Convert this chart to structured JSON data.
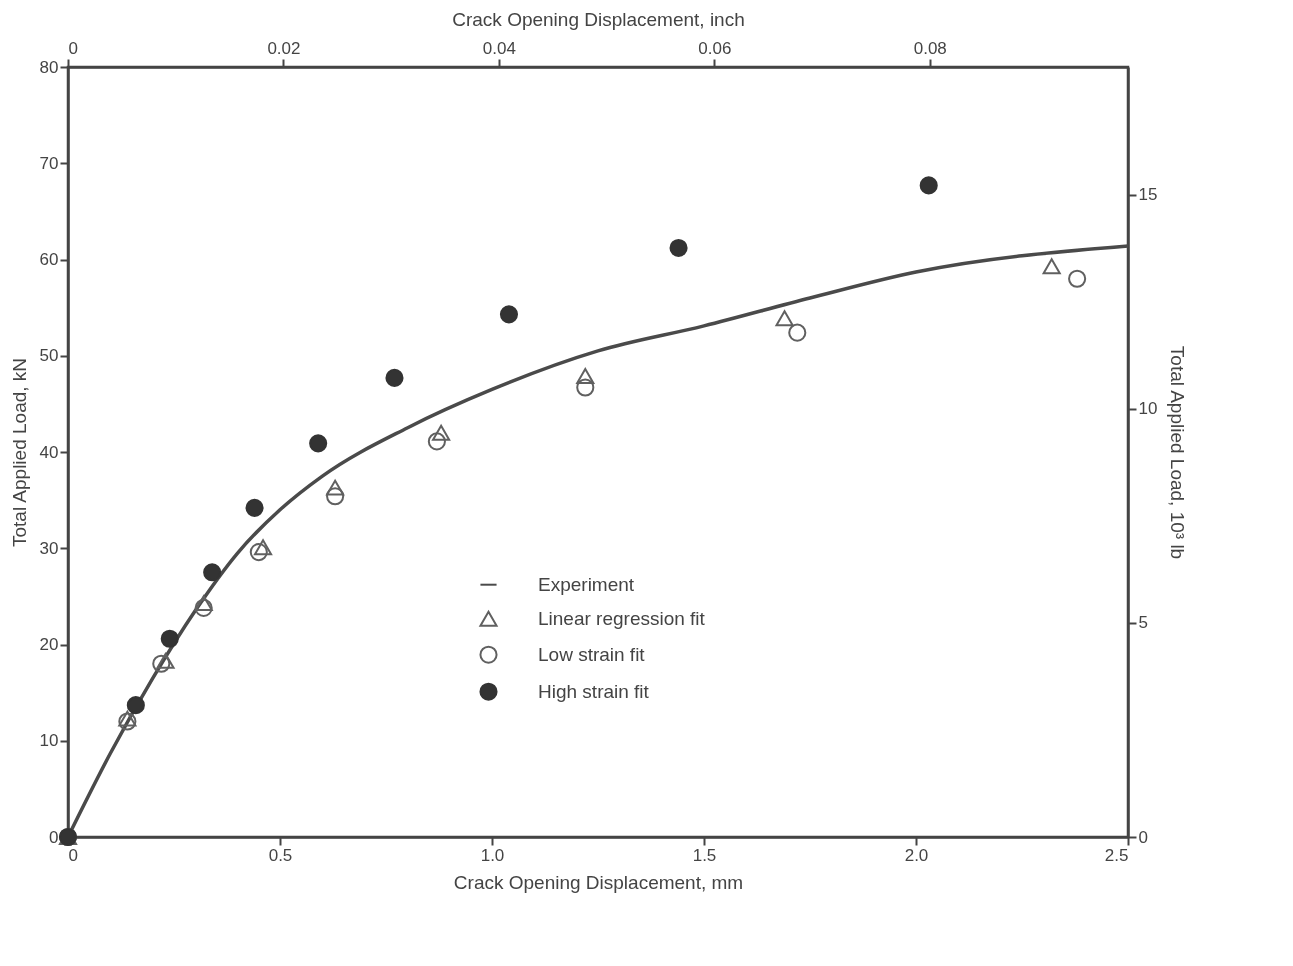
{
  "chart_data": {
    "type": "scatter",
    "xlabel": "Crack Opening Displacement, mm",
    "ylabel": "Total Applied Load, kN",
    "x2label": "Crack Opening Displacement, inch",
    "y2label": "Total Applied Load, 10³ lb",
    "xlim": [
      0,
      2.5
    ],
    "xticks": [
      0,
      0.5,
      {
        "value": 1,
        "label": "1.0"
      },
      1.5,
      {
        "value": 2,
        "label": "2.0"
      },
      2.5
    ],
    "ylim": [
      0,
      80
    ],
    "yticks": [
      0,
      10,
      20,
      30,
      40,
      50,
      60,
      70,
      80
    ],
    "x2lim": [
      0,
      0.0984
    ],
    "x2ticks": [
      0,
      0.02,
      0.04,
      0.06,
      0.08
    ],
    "y2lim": [
      0,
      17.98
    ],
    "y2ticks": [
      0,
      5,
      10,
      15
    ],
    "grid": false,
    "legend": "bottom",
    "series": [
      {
        "name": "Experiment",
        "type": "line",
        "color": "#4a4a4a",
        "line_style": "solid",
        "marker": "none",
        "x": [
          0,
          0.1,
          0.2,
          0.3,
          0.4,
          0.5,
          0.6,
          0.8,
          1.0,
          1.25,
          1.5,
          1.75,
          2.0,
          2.5
        ],
        "values": [
          0,
          8.7,
          16.5,
          23.5,
          29.5,
          34,
          37.5,
          42.5,
          46.5,
          50.5,
          53.1,
          56.0,
          58.7,
          61.4
        ]
      },
      {
        "name": "Linear regression fit",
        "color": "#606060",
        "marker": "triangle",
        "x": [
          0,
          0.14,
          0.23,
          0.32,
          0.46,
          0.63,
          0.88,
          1.22,
          1.69,
          2.32
        ],
        "values": [
          0,
          12.3,
          18.3,
          24.3,
          30.1,
          36.3,
          42.0,
          47.9,
          53.9,
          59.3
        ]
      },
      {
        "name": "Low strain fit",
        "color": "#606060",
        "marker": "circle",
        "x": [
          0,
          0.14,
          0.22,
          0.32,
          0.45,
          0.63,
          0.87,
          1.22,
          1.72,
          2.38
        ],
        "values": [
          0,
          12.0,
          18.0,
          23.8,
          29.6,
          35.4,
          41.1,
          46.7,
          52.4,
          58.0
        ]
      },
      {
        "name": "High strain fit",
        "color": "#333333",
        "marker": "circle",
        "x": [
          0,
          0.16,
          0.24,
          0.34,
          0.44,
          0.59,
          0.77,
          1.04,
          1.44,
          2.03
        ],
        "values": [
          0,
          13.7,
          20.6,
          27.5,
          34.2,
          40.9,
          47.7,
          54.3,
          61.2,
          67.7
        ]
      }
    ]
  }
}
